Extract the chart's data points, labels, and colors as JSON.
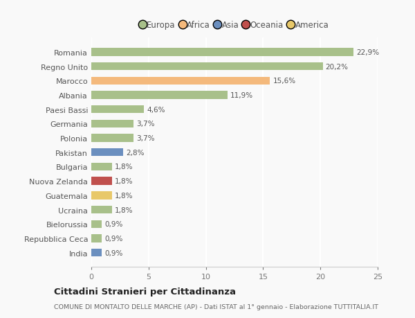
{
  "categories": [
    "Romania",
    "Regno Unito",
    "Marocco",
    "Albania",
    "Paesi Bassi",
    "Germania",
    "Polonia",
    "Pakistan",
    "Bulgaria",
    "Nuova Zelanda",
    "Guatemala",
    "Ucraina",
    "Bielorussia",
    "Repubblica Ceca",
    "India"
  ],
  "values": [
    22.9,
    20.2,
    15.6,
    11.9,
    4.6,
    3.7,
    3.7,
    2.8,
    1.8,
    1.8,
    1.8,
    1.8,
    0.9,
    0.9,
    0.9
  ],
  "labels": [
    "22,9%",
    "20,2%",
    "15,6%",
    "11,9%",
    "4,6%",
    "3,7%",
    "3,7%",
    "2,8%",
    "1,8%",
    "1,8%",
    "1,8%",
    "1,8%",
    "0,9%",
    "0,9%",
    "0,9%"
  ],
  "colors": [
    "#a8c08a",
    "#a8c08a",
    "#f4b97c",
    "#a8c08a",
    "#a8c08a",
    "#a8c08a",
    "#a8c08a",
    "#6b8fbf",
    "#a8c08a",
    "#c0504d",
    "#e8c86a",
    "#a8c08a",
    "#a8c08a",
    "#a8c08a",
    "#6b8fbf"
  ],
  "continents": [
    "Europa",
    "Africa",
    "Asia",
    "Oceania",
    "America"
  ],
  "continent_colors": [
    "#a8c08a",
    "#f4b97c",
    "#6b8fbf",
    "#c0504d",
    "#e8c86a"
  ],
  "xlim": [
    0,
    25
  ],
  "xticks": [
    0,
    5,
    10,
    15,
    20,
    25
  ],
  "title": "Cittadini Stranieri per Cittadinanza",
  "subtitle": "COMUNE DI MONTALTO DELLE MARCHE (AP) - Dati ISTAT al 1° gennaio - Elaborazione TUTTITALIA.IT",
  "bg_color": "#f9f9f9",
  "bar_height": 0.55
}
